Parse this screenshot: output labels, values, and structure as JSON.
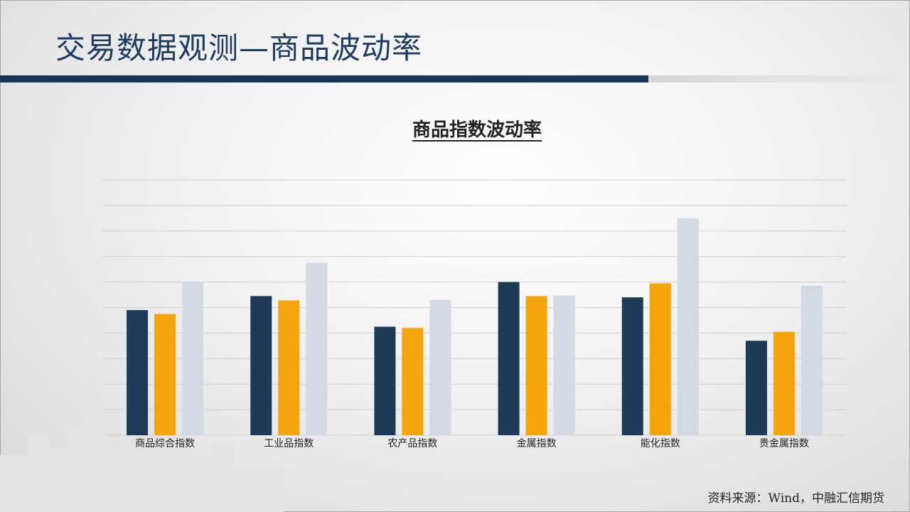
{
  "slide": {
    "title": "交易数据观测—商品波动率",
    "source": "资料来源：Wind，中融汇信期货"
  },
  "colors": {
    "title": "#1f3b5f",
    "title_bar": "#1a3457",
    "series": [
      "#1f3a58",
      "#f5a40c",
      "#d3dae3"
    ],
    "grid": "#d0d0d0"
  },
  "chart_data": {
    "type": "bar",
    "title": "商品指数波动率",
    "categories": [
      "商品综合指数",
      "工业品指数",
      "农产品指数",
      "金属指数",
      "能化指数",
      "贵金属指数"
    ],
    "series": [
      {
        "values": [
          4.9,
          5.45,
          4.25,
          6.0,
          5.4,
          3.7
        ]
      },
      {
        "values": [
          4.75,
          5.28,
          4.2,
          5.45,
          5.95,
          4.05
        ]
      },
      {
        "values": [
          6.0,
          6.75,
          5.3,
          5.47,
          8.5,
          5.85
        ]
      }
    ],
    "ylim": [
      0,
      10
    ],
    "grid": true,
    "legend": "none"
  }
}
